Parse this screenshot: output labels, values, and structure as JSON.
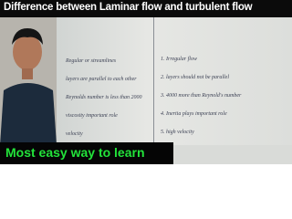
{
  "header": {
    "title": "Difference between Laminar flow and turbulent flow"
  },
  "notes": {
    "left": [
      "Regular or streamlines",
      "layers are parallel to each other",
      "Reynolds number is less than 2000",
      "viscosity important role",
      "velocity"
    ],
    "right": [
      "1. Irregular flow",
      "2. layers should not be parallel",
      "3. 4000 more than Reynold's number",
      "4. Inertia plays important role",
      "5. high velocity"
    ]
  },
  "footer": {
    "caption": "Most easy way to learn"
  }
}
